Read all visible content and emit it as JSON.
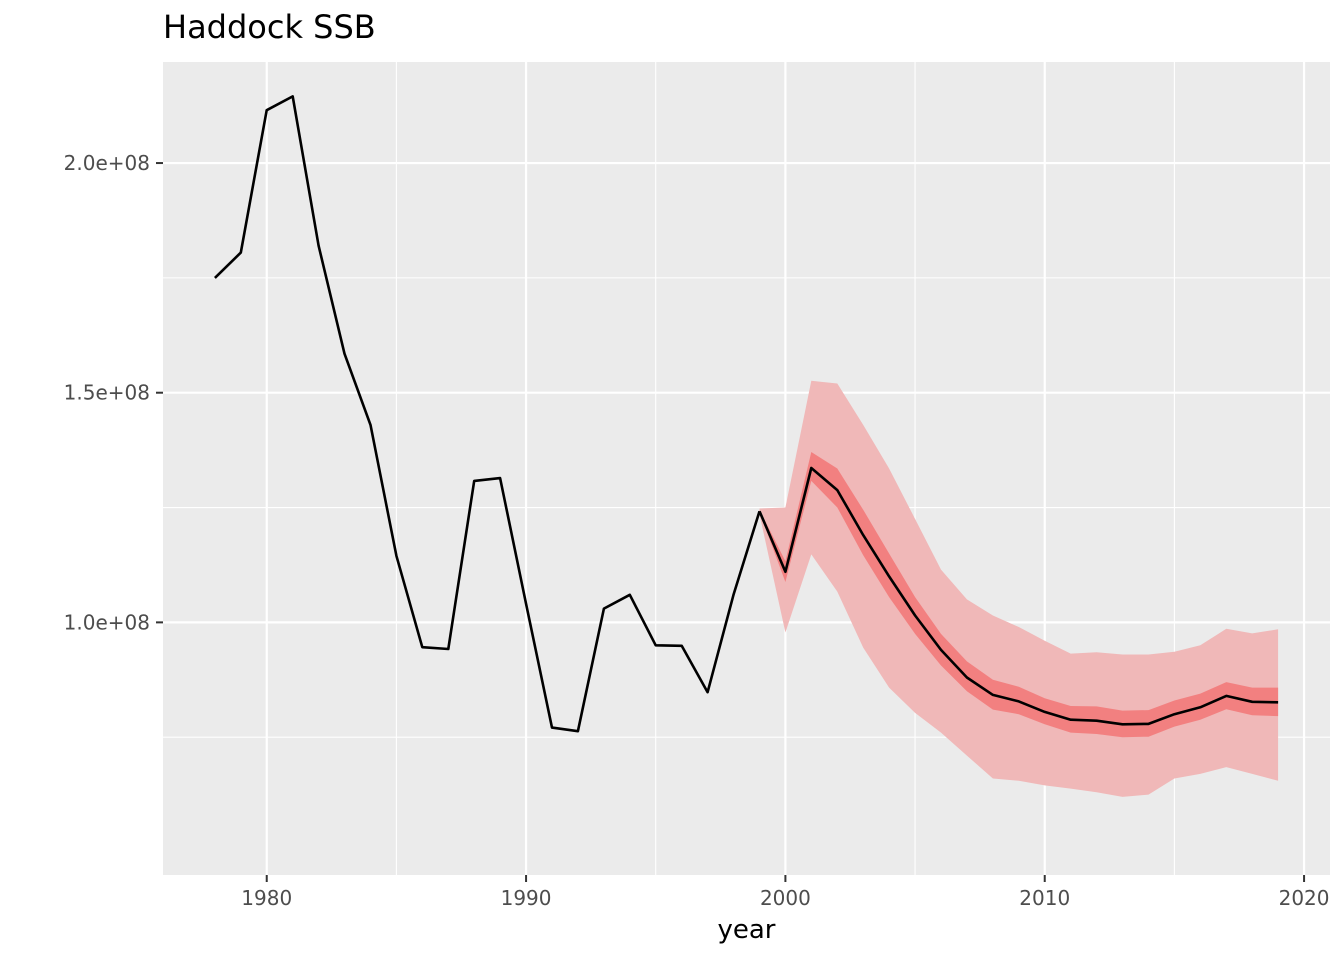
{
  "chart_data": {
    "type": "line",
    "title": "Haddock SSB",
    "xlabel": "year",
    "ylabel": "",
    "xlim": [
      1976,
      2021
    ],
    "ylim": [
      45000000,
      222000000
    ],
    "grid": true,
    "x_ticks": [
      1980,
      1990,
      2000,
      2010,
      2020
    ],
    "y_ticks": [
      100000000,
      150000000,
      200000000
    ],
    "y_tick_labels": [
      "1.0e+08",
      "1.5e+08",
      "2.0e+08"
    ],
    "colors": {
      "panel": "#ebebeb",
      "grid": "#ffffff",
      "line": "#000000",
      "outer_band": "#f0b8b8",
      "inner_band": "#f28080"
    },
    "series": [
      {
        "role": "historical",
        "x": [
          1978,
          1979,
          1980,
          1981,
          1982,
          1983,
          1984,
          1985,
          1986,
          1987,
          1988,
          1989,
          1990,
          1991,
          1992,
          1993,
          1994,
          1995,
          1996,
          1997,
          1998,
          1999
        ],
        "y": [
          175000000,
          180500000,
          211500000,
          214500000,
          182000000,
          158500000,
          143000000,
          114500000,
          94600000,
          94200000,
          130800000,
          131400000,
          104000000,
          77100000,
          76300000,
          103000000,
          106000000,
          95000000,
          94900000,
          84800000,
          106000000,
          124200000
        ]
      },
      {
        "role": "projection",
        "x": [
          1999,
          2000,
          2001,
          2002,
          2003,
          2004,
          2005,
          2006,
          2007,
          2008,
          2009,
          2010,
          2011,
          2012,
          2013,
          2014,
          2015,
          2016,
          2017,
          2018,
          2019
        ],
        "y": [
          124200000,
          111000000,
          133600000,
          128800000,
          119000000,
          110000000,
          101500000,
          94000000,
          88000000,
          84200000,
          82800000,
          80500000,
          78800000,
          78600000,
          77800000,
          77900000,
          80000000,
          81500000,
          84000000,
          82700000,
          82600000
        ],
        "inner_lower": [
          124000000,
          108800000,
          130800000,
          125000000,
          114600000,
          105500000,
          97500000,
          90600000,
          85000000,
          81000000,
          80000000,
          77800000,
          76000000,
          75700000,
          75000000,
          75100000,
          77300000,
          78800000,
          81100000,
          79800000,
          79600000
        ],
        "inner_upper": [
          124500000,
          113300000,
          137100000,
          133500000,
          124500000,
          115000000,
          105500000,
          97500000,
          91500000,
          87500000,
          86000000,
          83500000,
          81800000,
          81700000,
          80800000,
          80900000,
          83000000,
          84500000,
          87000000,
          85800000,
          85800000
        ],
        "outer_lower": [
          123500000,
          97800000,
          114800000,
          106700000,
          94500000,
          85800000,
          80300000,
          76000000,
          71000000,
          66000000,
          65500000,
          64500000,
          63800000,
          63000000,
          62000000,
          62500000,
          66000000,
          67000000,
          68500000,
          67000000,
          65500000
        ],
        "outer_upper": [
          124800000,
          125000000,
          152600000,
          152000000,
          143000000,
          133500000,
          122500000,
          111500000,
          105000000,
          101500000,
          99000000,
          96000000,
          93200000,
          93500000,
          93000000,
          93000000,
          93600000,
          95000000,
          98600000,
          97600000,
          98500000
        ]
      }
    ]
  }
}
